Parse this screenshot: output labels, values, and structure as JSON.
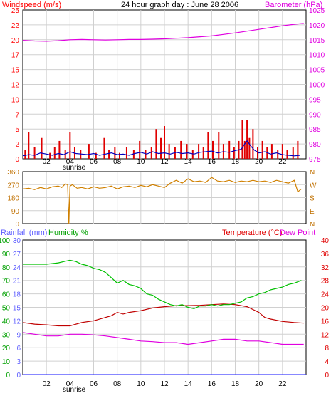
{
  "chart_data": [
    {
      "type": "line",
      "title": "24 hour graph day : June 28 2006",
      "y_left_label": "Windspeed (m/s)",
      "y_right_label": "Barometer (hPa)",
      "x_ticks": [
        "02",
        "04",
        "06",
        "08",
        "10",
        "12",
        "14",
        "16",
        "18",
        "20",
        "22"
      ],
      "x_range_hours": [
        0,
        24
      ],
      "sunrise_label": "sunrise",
      "y_left_ticks": [
        "0",
        "2",
        "5",
        "7",
        "10",
        "12",
        "15",
        "17",
        "20",
        "22",
        "25"
      ],
      "y_left_range": [
        0,
        25
      ],
      "y_right_ticks": [
        "975",
        "980",
        "985",
        "990",
        "995",
        "1000",
        "1005",
        "1010",
        "1015",
        "1020",
        "1025"
      ],
      "y_right_range": [
        975,
        1025
      ],
      "grid": true,
      "series": [
        {
          "role": "windspeed gust (red bars)",
          "color": "#e00000",
          "x": [
            0.2,
            0.5,
            1.0,
            1.6,
            2.3,
            2.7,
            3.1,
            3.6,
            4.0,
            4.4,
            4.9,
            5.6,
            6.2,
            6.9,
            7.3,
            7.8,
            8.2,
            8.8,
            9.4,
            9.9,
            10.4,
            10.9,
            11.3,
            11.7,
            12.0,
            12.4,
            12.9,
            13.4,
            13.9,
            14.4,
            14.9,
            15.3,
            15.7,
            16.1,
            16.6,
            17.0,
            17.5,
            17.9,
            18.3,
            18.6,
            18.8,
            19.0,
            19.2,
            19.5,
            19.9,
            20.3,
            20.7,
            21.1,
            21.6,
            22.0,
            22.4,
            22.9,
            23.3
          ],
          "values": [
            1.5,
            4.5,
            2.0,
            3.5,
            1.0,
            2.0,
            3.0,
            1.5,
            4.5,
            2.0,
            1.5,
            2.5,
            1.0,
            3.5,
            1.5,
            2.0,
            1.0,
            2.0,
            1.5,
            3.0,
            1.5,
            2.0,
            5.0,
            3.5,
            5.5,
            2.5,
            2.0,
            3.0,
            2.5,
            1.5,
            2.5,
            2.0,
            4.5,
            3.0,
            4.5,
            2.5,
            3.0,
            2.0,
            3.0,
            6.5,
            3.0,
            6.5,
            3.5,
            5.0,
            2.0,
            3.0,
            2.0,
            2.5,
            1.5,
            2.5,
            1.5,
            2.0,
            3.0
          ]
        },
        {
          "role": "windspeed average (blue)",
          "color": "#0000c0",
          "x": [
            0,
            0.5,
            1,
            1.5,
            2,
            2.5,
            3,
            3.5,
            4,
            4.5,
            5,
            5.5,
            6,
            6.5,
            7,
            7.5,
            8,
            8.5,
            9,
            9.5,
            10,
            10.5,
            11,
            11.5,
            12,
            12.5,
            13,
            13.5,
            14,
            14.5,
            15,
            15.5,
            16,
            16.5,
            17,
            17.5,
            18,
            18.5,
            18.8,
            19,
            19.3,
            19.6,
            20,
            20.5,
            21,
            21.5,
            22,
            22.5,
            23,
            23.5
          ],
          "values": [
            0.5,
            0.7,
            0.6,
            1.0,
            0.8,
            0.6,
            0.9,
            0.7,
            1.2,
            0.9,
            0.8,
            0.7,
            0.9,
            0.6,
            0.8,
            1.0,
            0.7,
            0.8,
            0.6,
            0.9,
            1.1,
            0.8,
            1.2,
            0.9,
            1.0,
            0.8,
            1.1,
            0.9,
            1.0,
            0.8,
            1.1,
            1.2,
            1.3,
            1.0,
            1.2,
            1.1,
            1.4,
            1.6,
            2.5,
            3.0,
            2.2,
            1.5,
            1.0,
            1.2,
            0.8,
            1.0,
            0.7,
            0.6,
            0.5,
            0.6
          ]
        },
        {
          "role": "barometer (magenta)",
          "color": "#e000e0",
          "x": [
            0,
            1,
            2,
            3,
            4,
            5,
            6,
            7,
            8,
            9,
            10,
            11,
            12,
            13,
            14,
            15,
            16,
            17,
            18,
            19,
            20,
            21,
            22,
            23,
            23.8
          ],
          "values": [
            1014.8,
            1014.6,
            1014.5,
            1014.7,
            1015.0,
            1015.1,
            1015.0,
            1014.9,
            1015.0,
            1015.1,
            1015.1,
            1015.2,
            1015.3,
            1015.5,
            1015.7,
            1016.0,
            1016.3,
            1016.8,
            1017.3,
            1017.9,
            1018.5,
            1019.1,
            1019.7,
            1020.2,
            1020.5
          ]
        }
      ]
    },
    {
      "type": "line",
      "title": "",
      "x_ticks": [
        "02",
        "04",
        "06",
        "08",
        "10",
        "12",
        "14",
        "16",
        "18",
        "20",
        "22"
      ],
      "x_range_hours": [
        0,
        24
      ],
      "y_left_ticks": [
        "360",
        "270",
        "180",
        "90",
        "0"
      ],
      "y_left_range": [
        0,
        360
      ],
      "y_right_ticks": [
        "N",
        "W",
        "S",
        "E",
        "N"
      ],
      "grid": true,
      "series": [
        {
          "role": "wind direction (degrees)",
          "color": "#d08000",
          "x": [
            0,
            0.5,
            1,
            1.5,
            2,
            2.5,
            3,
            3.3,
            3.6,
            3.8,
            3.9,
            4.0,
            4.2,
            4.6,
            5,
            5.5,
            6,
            6.5,
            7,
            7.5,
            8,
            8.5,
            9,
            9.5,
            10,
            10.5,
            11,
            11.5,
            12,
            12.5,
            13,
            13.5,
            14,
            14.5,
            15,
            15.5,
            16,
            16.5,
            17,
            17.5,
            18,
            18.5,
            19,
            19.5,
            20,
            20.5,
            21,
            21.5,
            22,
            22.5,
            23,
            23.3,
            23.6
          ],
          "values": [
            240,
            245,
            235,
            250,
            240,
            255,
            260,
            250,
            275,
            270,
            0,
            260,
            270,
            245,
            250,
            240,
            255,
            245,
            250,
            260,
            240,
            255,
            260,
            250,
            265,
            255,
            270,
            260,
            250,
            280,
            300,
            280,
            310,
            290,
            295,
            285,
            320,
            295,
            290,
            300,
            285,
            295,
            290,
            300,
            290,
            295,
            285,
            300,
            290,
            280,
            300,
            220,
            240
          ]
        }
      ]
    },
    {
      "type": "line",
      "title": "",
      "y_left_label_rain": "Rainfall (mm)",
      "y_left_label_hum": "Humidity %",
      "y_right_label": "Temperature (°C)",
      "y_right_label2": "Dew Point",
      "x_ticks": [
        "02",
        "04",
        "06",
        "08",
        "10",
        "12",
        "14",
        "16",
        "18",
        "20",
        "22"
      ],
      "x_range_hours": [
        0,
        24
      ],
      "sunrise_label": "sunrise",
      "y_rain_ticks": [
        "0",
        "3",
        "6",
        "9",
        "12",
        "15",
        "18",
        "21",
        "24",
        "27",
        "30"
      ],
      "y_rain_range": [
        0,
        30
      ],
      "y_hum_ticks": [
        "0",
        "10",
        "20",
        "30",
        "40",
        "50",
        "60",
        "70",
        "80",
        "90",
        "100"
      ],
      "y_hum_range": [
        0,
        100
      ],
      "y_temp_ticks": [
        "0",
        "4",
        "8",
        "12",
        "16",
        "20",
        "24",
        "28",
        "32",
        "36",
        "40"
      ],
      "y_temp_range": [
        0,
        40
      ],
      "grid": true,
      "series": [
        {
          "role": "humidity % (green)",
          "color": "#00c000",
          "x": [
            0,
            1,
            2,
            3,
            3.5,
            4,
            4.5,
            5,
            5.5,
            6,
            6.5,
            7,
            7.5,
            8,
            8.5,
            9,
            9.5,
            10,
            10.5,
            11,
            11.5,
            12,
            12.5,
            13,
            13.5,
            14,
            14.5,
            15,
            15.5,
            16,
            16.5,
            17,
            17.5,
            18,
            18.5,
            19,
            19.5,
            20,
            20.5,
            21,
            21.5,
            22,
            22.5,
            23,
            23.6
          ],
          "values": [
            82,
            82,
            82,
            83,
            84,
            85,
            84,
            82,
            81,
            79,
            78,
            76,
            72,
            68,
            70,
            67,
            66,
            64,
            60,
            59,
            56,
            54,
            52,
            51,
            52,
            50,
            49,
            51,
            51,
            52,
            51,
            52,
            52,
            53,
            54,
            57,
            58,
            60,
            61,
            63,
            64,
            65,
            67,
            68,
            70
          ]
        },
        {
          "role": "temperature °C (dark red)",
          "color": "#c00000",
          "x": [
            0,
            1,
            2,
            3,
            4,
            5,
            6,
            7,
            7.5,
            8,
            8.5,
            9,
            10,
            11,
            12,
            13,
            14,
            15,
            16,
            17,
            18,
            19,
            20,
            20.5,
            21,
            22,
            23,
            23.8
          ],
          "values": [
            15.5,
            15.0,
            14.8,
            14.5,
            14.5,
            15.5,
            16.0,
            17.0,
            17.5,
            18.5,
            18.0,
            18.5,
            19.0,
            19.8,
            20.2,
            20.5,
            20.5,
            20.6,
            20.8,
            21.0,
            20.8,
            20.2,
            18.5,
            17.0,
            16.5,
            15.8,
            15.5,
            15.3
          ]
        },
        {
          "role": "dew point °C (magenta)",
          "color": "#e000e0",
          "x": [
            0,
            1,
            2,
            3,
            4,
            5,
            6,
            7,
            8,
            9,
            10,
            11,
            12,
            13,
            14,
            15,
            16,
            17,
            18,
            19,
            20,
            21,
            22,
            23,
            23.8
          ],
          "values": [
            12.5,
            12.0,
            11.5,
            11.5,
            12.0,
            12.0,
            11.8,
            11.5,
            11.0,
            10.5,
            10.0,
            9.8,
            9.5,
            9.5,
            9.0,
            9.5,
            10.0,
            10.5,
            10.5,
            10.0,
            10.0,
            9.5,
            9.0,
            9.0,
            9.0
          ]
        },
        {
          "role": "rainfall mm (blue)",
          "color": "#4040ff",
          "x": [
            0,
            24
          ],
          "values": [
            0,
            0
          ]
        }
      ]
    }
  ]
}
